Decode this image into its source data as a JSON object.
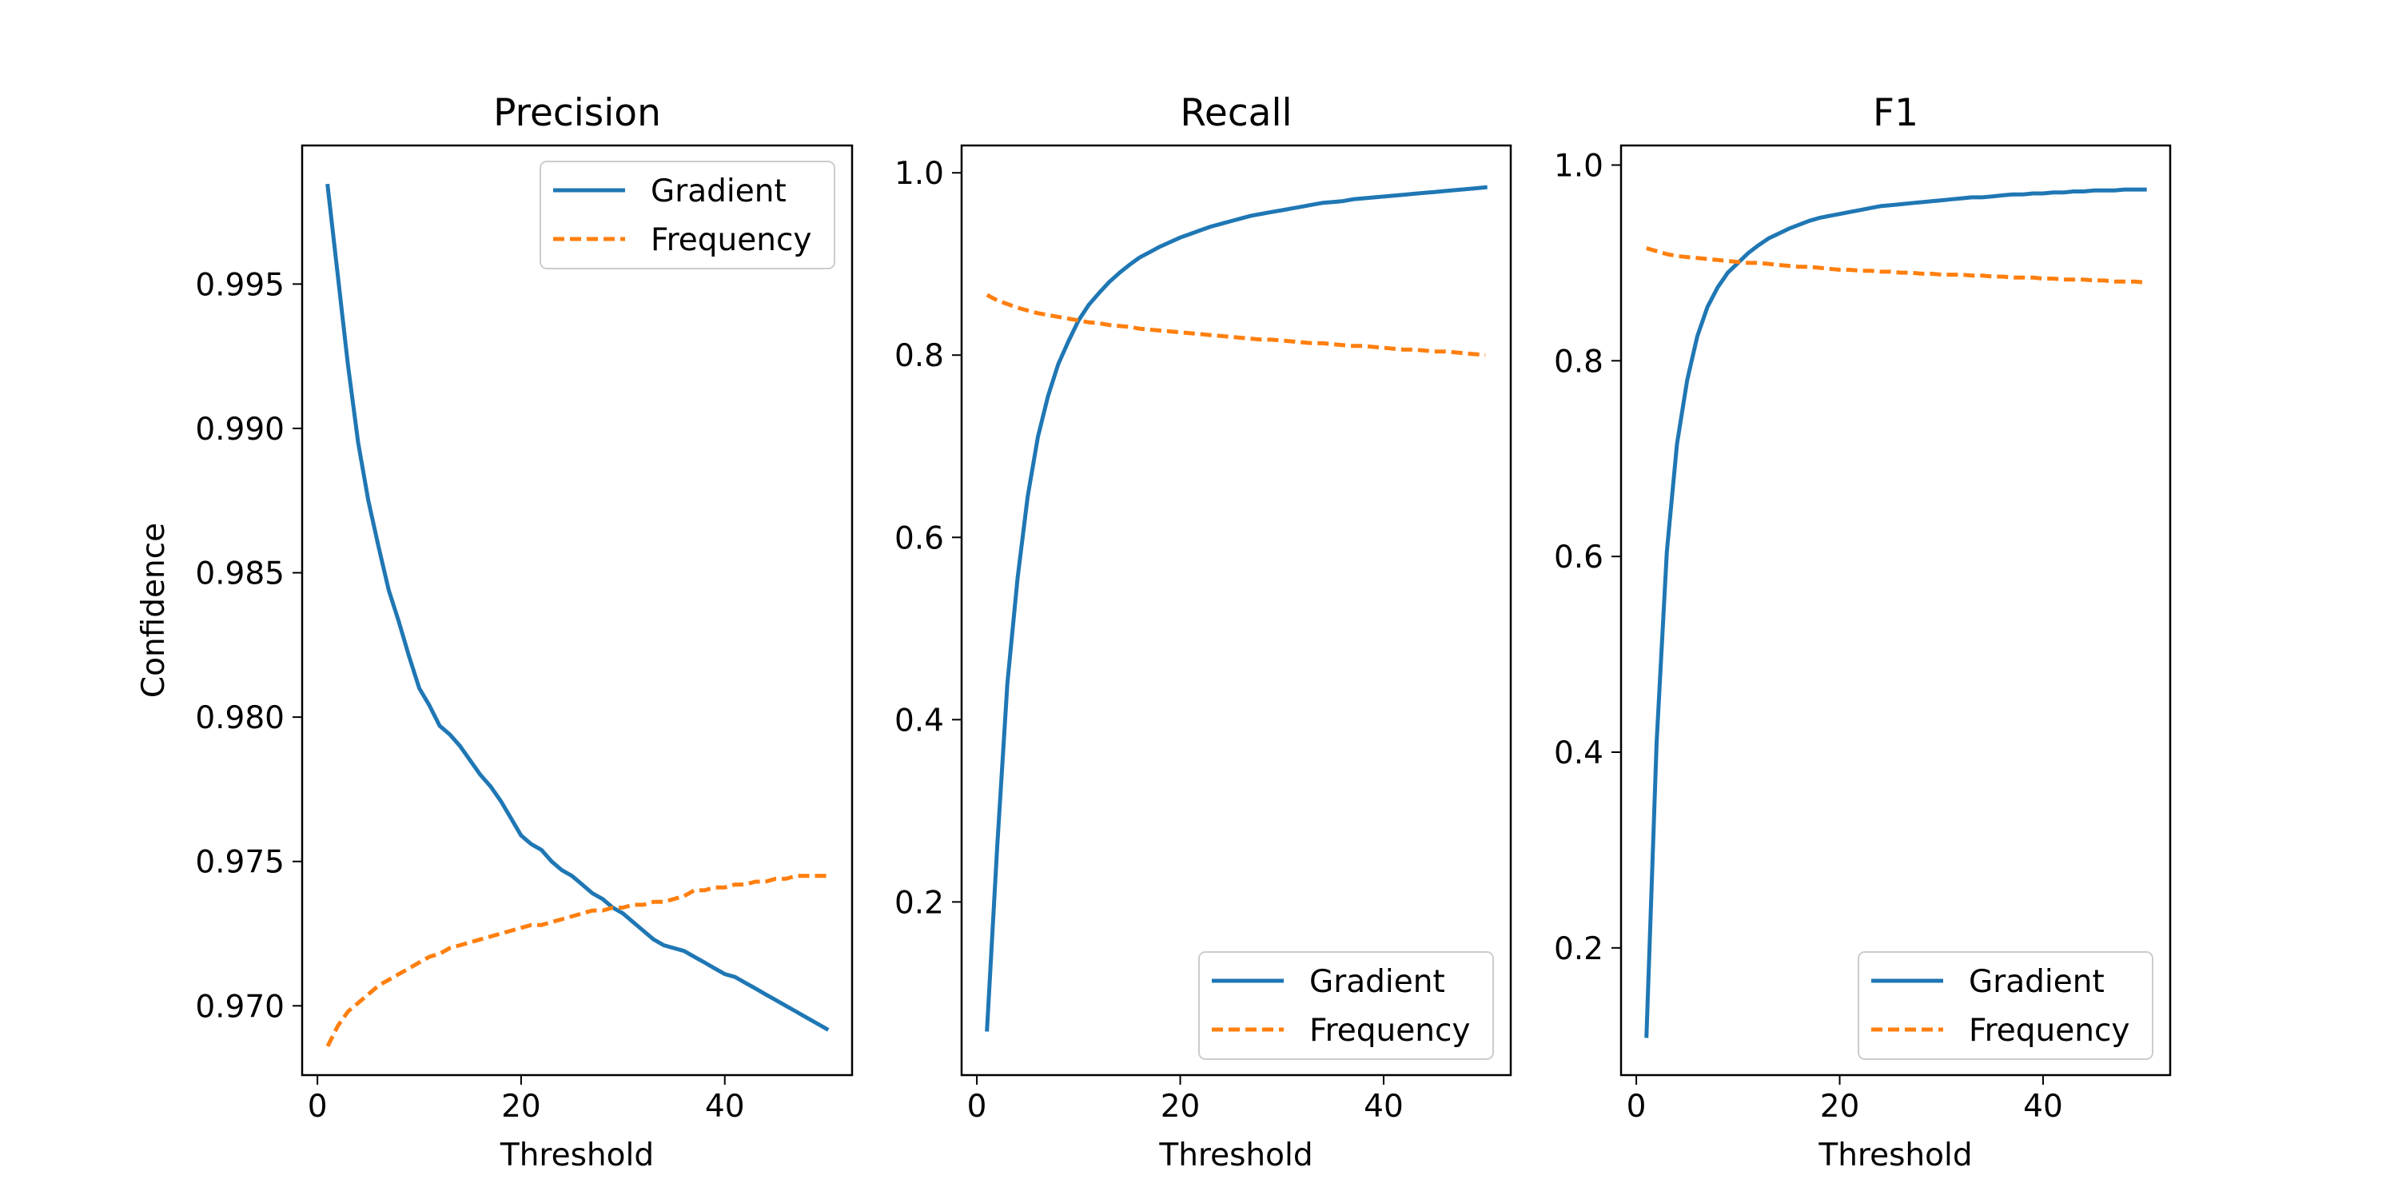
{
  "chart_data": [
    {
      "type": "line",
      "title": "Precision",
      "xlabel": "Threshold",
      "ylabel": "Confidence",
      "xlim": [
        -1.5,
        52.5
      ],
      "ylim": [
        0.9676,
        0.9998
      ],
      "xticks": [
        0,
        20,
        40
      ],
      "yticks": [
        0.97,
        0.975,
        0.98,
        0.985,
        0.99,
        0.995
      ],
      "ytick_labels": [
        "0.970",
        "0.975",
        "0.980",
        "0.985",
        "0.990",
        "0.995"
      ],
      "grid": false,
      "legend_position": "upper right",
      "x": [
        1,
        2,
        3,
        4,
        5,
        6,
        7,
        8,
        9,
        10,
        11,
        12,
        13,
        14,
        15,
        16,
        17,
        18,
        19,
        20,
        21,
        22,
        23,
        24,
        25,
        26,
        27,
        28,
        29,
        30,
        31,
        32,
        33,
        34,
        35,
        36,
        37,
        38,
        39,
        40,
        41,
        42,
        43,
        44,
        45,
        46,
        47,
        48,
        49,
        50
      ],
      "series": [
        {
          "name": "Gradient",
          "color": "#1f77b4",
          "dash": "solid",
          "values": [
            0.9984,
            0.9953,
            0.9922,
            0.9895,
            0.9875,
            0.9859,
            0.9844,
            0.9833,
            0.9821,
            0.981,
            0.9804,
            0.9797,
            0.9794,
            0.979,
            0.9785,
            0.978,
            0.9776,
            0.9771,
            0.9765,
            0.9759,
            0.9756,
            0.9754,
            0.975,
            0.9747,
            0.9745,
            0.9742,
            0.9739,
            0.9737,
            0.9734,
            0.9732,
            0.9729,
            0.9726,
            0.9723,
            0.9721,
            0.972,
            0.9719,
            0.9717,
            0.9715,
            0.9713,
            0.9711,
            0.971,
            0.9708,
            0.9706,
            0.9704,
            0.9702,
            0.97,
            0.9698,
            0.9696,
            0.9694,
            0.9692
          ]
        },
        {
          "name": "Frequency",
          "color": "#ff7f0e",
          "dash": "dashed",
          "values": [
            0.9686,
            0.9693,
            0.9698,
            0.9701,
            0.9704,
            0.9707,
            0.9709,
            0.9711,
            0.9713,
            0.9715,
            0.9717,
            0.9718,
            0.972,
            0.9721,
            0.9722,
            0.9723,
            0.9724,
            0.9725,
            0.9726,
            0.9727,
            0.9728,
            0.9728,
            0.9729,
            0.973,
            0.9731,
            0.9732,
            0.9733,
            0.9733,
            0.9734,
            0.9734,
            0.9735,
            0.9735,
            0.9736,
            0.9736,
            0.9737,
            0.9738,
            0.974,
            0.974,
            0.9741,
            0.9741,
            0.9742,
            0.9742,
            0.9743,
            0.9743,
            0.9744,
            0.9744,
            0.9745,
            0.9745,
            0.9745,
            0.9745
          ]
        }
      ]
    },
    {
      "type": "line",
      "title": "Recall",
      "xlabel": "Threshold",
      "ylabel": "",
      "xlim": [
        -1.5,
        52.5
      ],
      "ylim": [
        0.01,
        1.03
      ],
      "xticks": [
        0,
        20,
        40
      ],
      "yticks": [
        0.2,
        0.4,
        0.6,
        0.8,
        1.0
      ],
      "ytick_labels": [
        "0.2",
        "0.4",
        "0.6",
        "0.8",
        "1.0"
      ],
      "grid": false,
      "legend_position": "lower right",
      "x": [
        1,
        2,
        3,
        4,
        5,
        6,
        7,
        8,
        9,
        10,
        11,
        12,
        13,
        14,
        15,
        16,
        17,
        18,
        19,
        20,
        21,
        22,
        23,
        24,
        25,
        26,
        27,
        28,
        29,
        30,
        31,
        32,
        33,
        34,
        35,
        36,
        37,
        38,
        39,
        40,
        41,
        42,
        43,
        44,
        45,
        46,
        47,
        48,
        49,
        50
      ],
      "series": [
        {
          "name": "Gradient",
          "color": "#1f77b4",
          "dash": "solid",
          "values": [
            0.06,
            0.26,
            0.44,
            0.555,
            0.645,
            0.71,
            0.755,
            0.79,
            0.815,
            0.838,
            0.855,
            0.868,
            0.88,
            0.89,
            0.899,
            0.907,
            0.913,
            0.919,
            0.924,
            0.929,
            0.933,
            0.937,
            0.941,
            0.944,
            0.947,
            0.95,
            0.953,
            0.955,
            0.957,
            0.959,
            0.961,
            0.963,
            0.965,
            0.967,
            0.968,
            0.969,
            0.971,
            0.972,
            0.973,
            0.974,
            0.975,
            0.976,
            0.977,
            0.978,
            0.979,
            0.98,
            0.981,
            0.982,
            0.983,
            0.984
          ]
        },
        {
          "name": "Frequency",
          "color": "#ff7f0e",
          "dash": "dashed",
          "values": [
            0.866,
            0.86,
            0.856,
            0.852,
            0.849,
            0.846,
            0.844,
            0.842,
            0.84,
            0.838,
            0.836,
            0.835,
            0.833,
            0.832,
            0.831,
            0.829,
            0.828,
            0.827,
            0.826,
            0.825,
            0.824,
            0.823,
            0.822,
            0.821,
            0.82,
            0.819,
            0.818,
            0.817,
            0.817,
            0.816,
            0.815,
            0.814,
            0.813,
            0.813,
            0.812,
            0.811,
            0.81,
            0.81,
            0.809,
            0.808,
            0.807,
            0.806,
            0.806,
            0.805,
            0.804,
            0.804,
            0.803,
            0.802,
            0.801,
            0.8
          ]
        }
      ]
    },
    {
      "type": "line",
      "title": "F1",
      "xlabel": "Threshold",
      "ylabel": "",
      "xlim": [
        -1.5,
        52.5
      ],
      "ylim": [
        0.07,
        1.02
      ],
      "xticks": [
        0,
        20,
        40
      ],
      "yticks": [
        0.2,
        0.4,
        0.6,
        0.8,
        1.0
      ],
      "ytick_labels": [
        "0.2",
        "0.4",
        "0.6",
        "0.8",
        "1.0"
      ],
      "grid": false,
      "legend_position": "lower right",
      "x": [
        1,
        2,
        3,
        4,
        5,
        6,
        7,
        8,
        9,
        10,
        11,
        12,
        13,
        14,
        15,
        16,
        17,
        18,
        19,
        20,
        21,
        22,
        23,
        24,
        25,
        26,
        27,
        28,
        29,
        30,
        31,
        32,
        33,
        34,
        35,
        36,
        37,
        38,
        39,
        40,
        41,
        42,
        43,
        44,
        45,
        46,
        47,
        48,
        49,
        50
      ],
      "series": [
        {
          "name": "Gradient",
          "color": "#1f77b4",
          "dash": "solid",
          "values": [
            0.11,
            0.41,
            0.605,
            0.715,
            0.78,
            0.825,
            0.855,
            0.875,
            0.89,
            0.9,
            0.91,
            0.918,
            0.925,
            0.93,
            0.935,
            0.939,
            0.943,
            0.946,
            0.948,
            0.95,
            0.952,
            0.954,
            0.956,
            0.958,
            0.959,
            0.96,
            0.961,
            0.962,
            0.963,
            0.964,
            0.965,
            0.966,
            0.967,
            0.967,
            0.968,
            0.969,
            0.97,
            0.97,
            0.971,
            0.971,
            0.972,
            0.972,
            0.973,
            0.973,
            0.974,
            0.974,
            0.974,
            0.975,
            0.975,
            0.975
          ]
        },
        {
          "name": "Frequency",
          "color": "#ff7f0e",
          "dash": "dashed",
          "values": [
            0.915,
            0.912,
            0.909,
            0.907,
            0.906,
            0.905,
            0.904,
            0.903,
            0.902,
            0.901,
            0.9,
            0.9,
            0.899,
            0.898,
            0.897,
            0.896,
            0.896,
            0.895,
            0.894,
            0.893,
            0.893,
            0.892,
            0.892,
            0.891,
            0.891,
            0.89,
            0.89,
            0.889,
            0.889,
            0.888,
            0.888,
            0.888,
            0.887,
            0.887,
            0.886,
            0.886,
            0.885,
            0.885,
            0.885,
            0.884,
            0.884,
            0.883,
            0.883,
            0.883,
            0.882,
            0.882,
            0.881,
            0.881,
            0.881,
            0.88
          ]
        }
      ]
    }
  ]
}
